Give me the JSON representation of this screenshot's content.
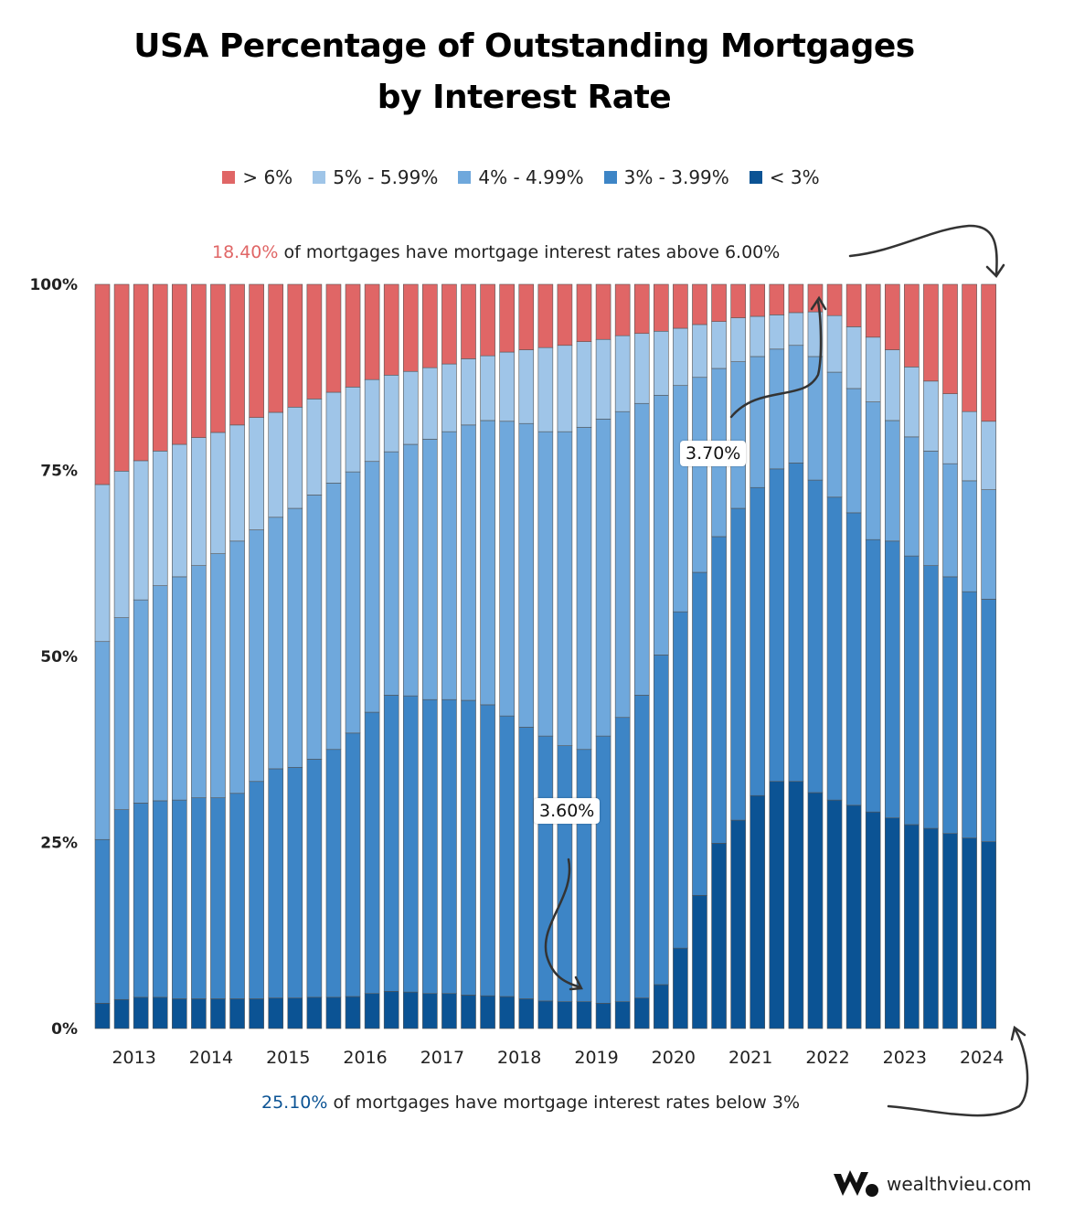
{
  "chart_data": {
    "type": "bar",
    "stacked": true,
    "title": [
      "USA Percentage of Outstanding Mortgages",
      "by Interest Rate"
    ],
    "x_tick_labels": [
      "2013",
      "2014",
      "2015",
      "2016",
      "2017",
      "2018",
      "2019",
      "2020",
      "2021",
      "2022",
      "2023",
      "2024"
    ],
    "y_tick_labels": [
      "0%",
      "25%",
      "50%",
      "75%",
      "100%"
    ],
    "ylim": [
      0,
      100
    ],
    "legend_placement": "top",
    "grid": false,
    "series": [
      {
        "name": "< 3%",
        "color": "#0b5394",
        "values": [
          3.4,
          3.9,
          4.2,
          4.2,
          4.0,
          4.0,
          4.0,
          4.0,
          4.0,
          4.1,
          4.1,
          4.2,
          4.2,
          4.3,
          4.7,
          5.0,
          4.9,
          4.7,
          4.7,
          4.5,
          4.4,
          4.3,
          4.0,
          3.7,
          3.6,
          3.6,
          3.4,
          3.6,
          4.1,
          5.9,
          10.8,
          17.9,
          24.9,
          28.0,
          31.3,
          33.2,
          33.2,
          31.7,
          30.7,
          30.0,
          29.1,
          28.3,
          27.4,
          26.9,
          26.2,
          25.6,
          25.1
        ]
      },
      {
        "name": "3% - 3.99%",
        "color": "#3d85c6",
        "values": [
          22.0,
          25.5,
          26.1,
          26.4,
          26.7,
          27.0,
          27.0,
          27.6,
          29.2,
          30.8,
          31.0,
          32.0,
          33.3,
          35.4,
          37.8,
          39.8,
          39.8,
          39.5,
          39.5,
          39.6,
          39.1,
          37.7,
          36.5,
          35.6,
          34.4,
          33.9,
          35.9,
          38.2,
          40.7,
          44.3,
          45.2,
          43.4,
          41.2,
          41.9,
          41.4,
          42.0,
          42.8,
          42.0,
          40.7,
          39.3,
          36.6,
          37.2,
          36.1,
          35.3,
          34.5,
          33.1,
          32.6
        ]
      },
      {
        "name": "4% - 4.99%",
        "color": "#6fa8dc",
        "values": [
          26.6,
          25.8,
          27.3,
          28.9,
          30.0,
          31.2,
          32.8,
          33.9,
          33.8,
          33.8,
          34.8,
          35.5,
          35.8,
          35.1,
          33.7,
          32.7,
          33.8,
          35.0,
          36.0,
          37.0,
          38.2,
          39.6,
          40.8,
          40.9,
          42.2,
          43.3,
          42.6,
          41.1,
          39.2,
          34.9,
          30.4,
          26.2,
          22.6,
          19.7,
          17.6,
          16.1,
          15.8,
          16.6,
          16.8,
          16.7,
          18.5,
          16.2,
          16.0,
          15.4,
          15.2,
          14.9,
          14.7
        ]
      },
      {
        "name": "5% - 5.99%",
        "color": "#9fc5e8",
        "values": [
          21.1,
          19.7,
          18.7,
          18.1,
          17.8,
          17.2,
          16.3,
          15.6,
          15.1,
          14.1,
          13.6,
          12.9,
          12.2,
          11.4,
          11.0,
          10.3,
          9.8,
          9.6,
          9.1,
          8.9,
          8.7,
          9.3,
          9.9,
          11.3,
          11.6,
          11.5,
          10.7,
          10.2,
          9.4,
          8.6,
          7.7,
          7.1,
          6.3,
          5.9,
          5.4,
          4.6,
          4.4,
          6.0,
          7.6,
          8.3,
          8.7,
          9.5,
          9.4,
          9.4,
          9.4,
          9.3,
          9.2
        ]
      },
      {
        "name": "> 6%",
        "color": "#e06666",
        "values": [
          26.9,
          25.1,
          23.7,
          22.4,
          21.5,
          20.6,
          19.9,
          18.9,
          17.9,
          17.2,
          16.5,
          15.4,
          14.5,
          13.8,
          12.8,
          12.2,
          11.7,
          11.2,
          10.7,
          10.0,
          9.6,
          9.1,
          8.8,
          8.5,
          8.2,
          7.7,
          7.4,
          6.9,
          6.6,
          6.3,
          5.9,
          5.4,
          5.0,
          4.5,
          4.3,
          4.1,
          3.8,
          3.7,
          4.2,
          5.7,
          7.1,
          8.8,
          11.1,
          13.0,
          14.7,
          17.1,
          18.4
        ]
      }
    ],
    "legend_order": [
      "> 6%",
      "5% - 5.99%",
      "4% - 4.99%",
      "3% - 3.99%",
      "< 3%"
    ],
    "annotations": {
      "top_value": "18.40%",
      "top_text": " of mortgages have mortgage interest rates above 6.00%",
      "bottom_value": "25.10%",
      "bottom_text": " of mortgages have mortgage interest rates below 3%",
      "callout_low": "3.60%",
      "callout_high": "3.70%",
      "top_value_color": "#e06666",
      "bottom_value_color": "#0b5394"
    }
  },
  "brand": {
    "name": "wealthvieu.com"
  }
}
